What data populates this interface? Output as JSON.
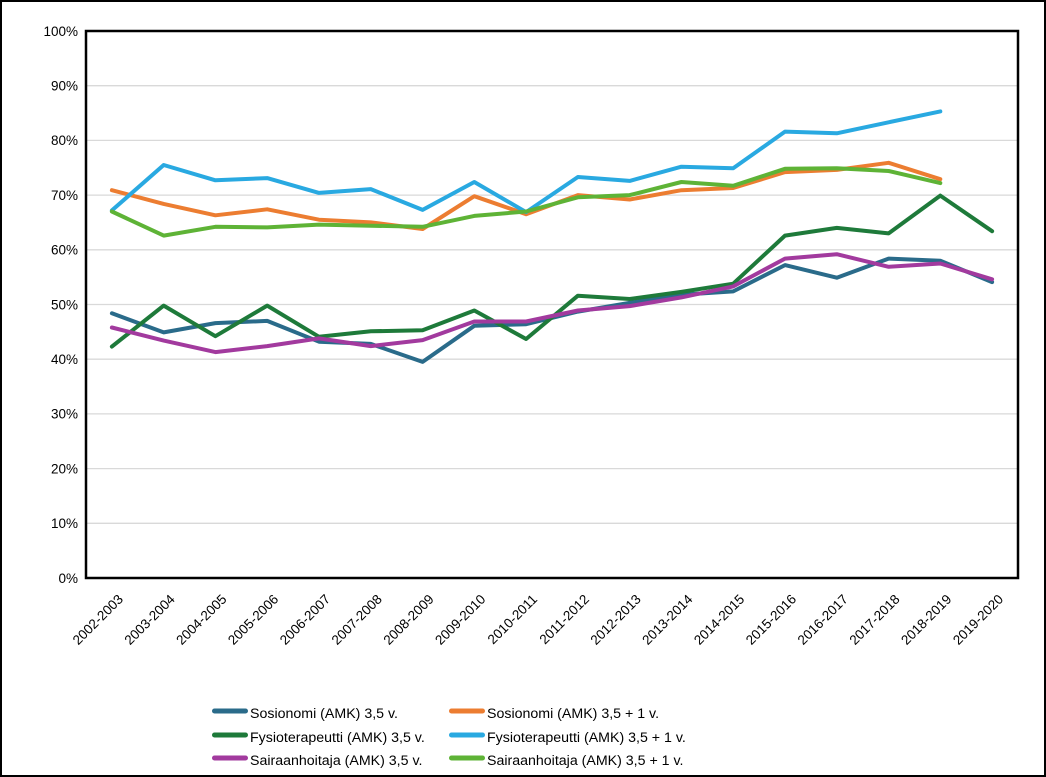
{
  "chart_data": {
    "type": "line",
    "title": "",
    "categories": [
      "2002-2003",
      "2003-2004",
      "2004-2005",
      "2005-2006",
      "2006-2007",
      "2007-2008",
      "2008-2009",
      "2009-2010",
      "2010-2011",
      "2011-2012",
      "2012-2013",
      "2013-2014",
      "2014-2015",
      "2015-2016",
      "2016-2017",
      "2017-2018",
      "2018-2019",
      "2019-2020"
    ],
    "y_axis": {
      "min": 0,
      "max": 100,
      "step": 10,
      "tick_suffix": "%"
    },
    "grid": "horizontal",
    "gridline_color": "#D9D9D9",
    "axis_color": "#000000",
    "legend_position": "bottom",
    "series": [
      {
        "name": "Sosionomi (AMK) 3,5 v.",
        "color": "#2A6B8A",
        "values": [
          48.4,
          44.9,
          46.6,
          47.0,
          43.2,
          42.8,
          39.5,
          46.1,
          46.4,
          48.7,
          50.3,
          51.8,
          52.4,
          57.2,
          54.9,
          58.4,
          58.0,
          54.1
        ]
      },
      {
        "name": "Sosionomi (AMK) 3,5 + 1 v.",
        "color": "#EC7D31",
        "values": [
          70.9,
          68.4,
          66.3,
          67.4,
          65.5,
          65.0,
          63.8,
          69.8,
          66.5,
          70.0,
          69.2,
          70.9,
          71.3,
          74.2,
          74.6,
          75.9,
          72.9,
          null
        ]
      },
      {
        "name": "Fysioterapeutti (AMK) 3,5 v.",
        "color": "#1E7A3A",
        "values": [
          42.3,
          49.8,
          44.2,
          49.8,
          44.1,
          45.1,
          45.3,
          48.9,
          43.7,
          51.6,
          51.0,
          52.3,
          53.8,
          62.6,
          64.0,
          63.0,
          69.9,
          63.4
        ]
      },
      {
        "name": "Fysioterapeutti (AMK) 3,5 + 1 v.",
        "color": "#29A9E1",
        "values": [
          67.2,
          75.5,
          72.7,
          73.1,
          70.4,
          71.1,
          67.3,
          72.4,
          66.9,
          73.3,
          72.6,
          75.2,
          74.9,
          81.6,
          81.3,
          83.3,
          85.3,
          null
        ]
      },
      {
        "name": "Sairaanhoitaja (AMK) 3,5 v.",
        "color": "#A23A9E",
        "values": [
          45.8,
          43.4,
          41.3,
          42.4,
          43.8,
          42.4,
          43.5,
          46.9,
          46.9,
          48.9,
          49.7,
          51.3,
          53.3,
          58.4,
          59.2,
          56.9,
          57.5,
          54.6
        ]
      },
      {
        "name": "Sairaanhoitaja (AMK) 3,5 + 1 v.",
        "color": "#5EB336",
        "values": [
          67.0,
          62.6,
          64.2,
          64.1,
          64.6,
          64.4,
          64.2,
          66.2,
          67.0,
          69.6,
          70.0,
          72.4,
          71.7,
          74.8,
          74.9,
          74.4,
          72.2,
          null
        ]
      }
    ]
  }
}
